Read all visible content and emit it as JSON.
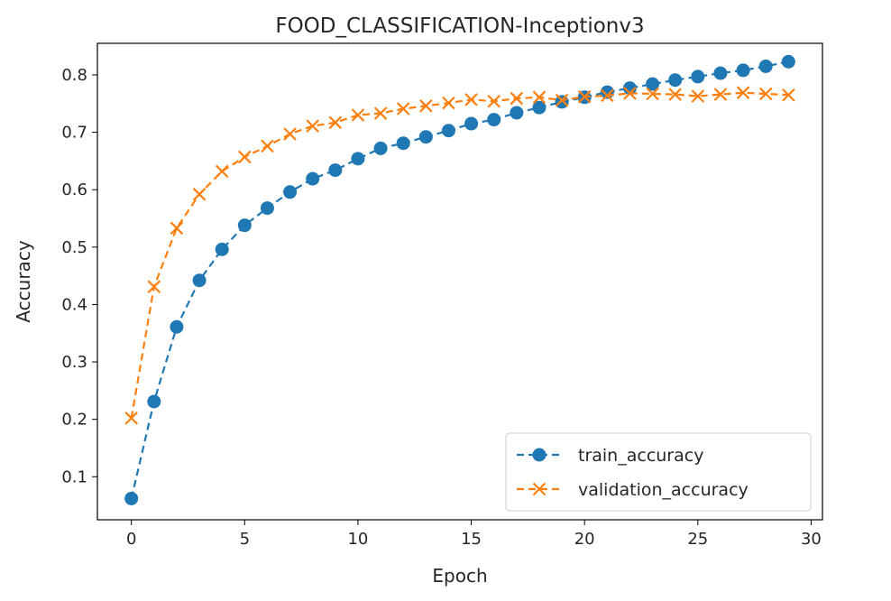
{
  "chart_data": {
    "type": "line",
    "title": "FOOD_CLASSIFICATION-Inceptionv3",
    "xlabel": "Epoch",
    "ylabel": "Accuracy",
    "xlim": [
      -1.5,
      30.5
    ],
    "ylim": [
      0.025,
      0.855
    ],
    "xticks": [
      0,
      5,
      10,
      15,
      20,
      25,
      30
    ],
    "xtick_labels": [
      "0",
      "5",
      "10",
      "15",
      "20",
      "25",
      "30"
    ],
    "yticks": [
      0.1,
      0.2,
      0.3,
      0.4,
      0.5,
      0.6,
      0.7,
      0.8
    ],
    "ytick_labels": [
      "0.1",
      "0.2",
      "0.3",
      "0.4",
      "0.5",
      "0.6",
      "0.7",
      "0.8"
    ],
    "grid": false,
    "legend_position": "lower-right",
    "x": [
      0,
      1,
      2,
      3,
      4,
      5,
      6,
      7,
      8,
      9,
      10,
      11,
      12,
      13,
      14,
      15,
      16,
      17,
      18,
      19,
      20,
      21,
      22,
      23,
      24,
      25,
      26,
      27,
      28,
      29
    ],
    "series": [
      {
        "name": "train_accuracy",
        "color": "#1f77b4",
        "linestyle": "dashed",
        "marker": "circle",
        "values": [
          0.062,
          0.231,
          0.361,
          0.442,
          0.496,
          0.538,
          0.568,
          0.596,
          0.619,
          0.634,
          0.654,
          0.672,
          0.681,
          0.692,
          0.703,
          0.715,
          0.722,
          0.734,
          0.743,
          0.753,
          0.761,
          0.77,
          0.777,
          0.784,
          0.791,
          0.797,
          0.803,
          0.808,
          0.815,
          0.823
        ]
      },
      {
        "name": "validation_accuracy",
        "color": "#ff7f0e",
        "linestyle": "dashed",
        "marker": "x",
        "values": [
          0.202,
          0.431,
          0.533,
          0.592,
          0.632,
          0.657,
          0.676,
          0.697,
          0.711,
          0.717,
          0.73,
          0.733,
          0.741,
          0.746,
          0.751,
          0.757,
          0.754,
          0.759,
          0.761,
          0.756,
          0.762,
          0.764,
          0.768,
          0.767,
          0.766,
          0.763,
          0.766,
          0.769,
          0.767,
          0.765
        ]
      }
    ]
  }
}
